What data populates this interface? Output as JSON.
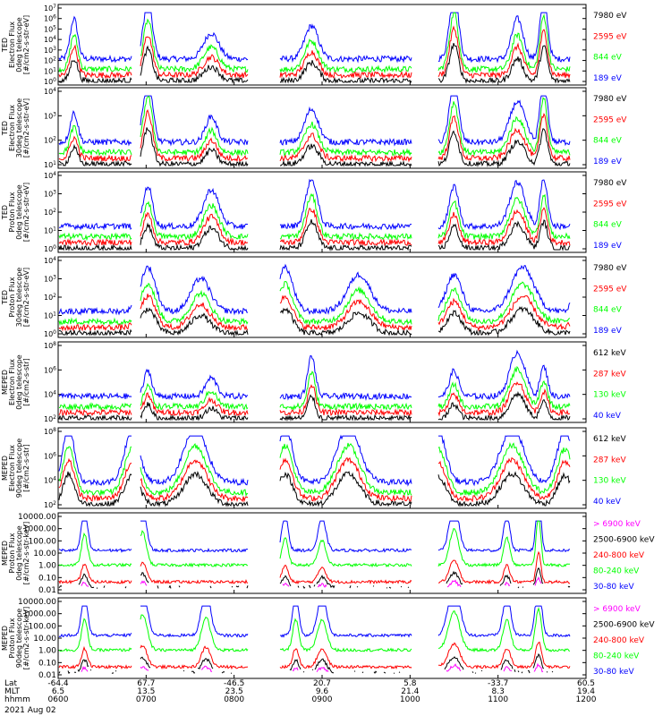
{
  "colors": {
    "blue": "#0000ff",
    "green": "#00ff00",
    "red": "#ff0000",
    "black": "#000000",
    "magenta": "#ff00ff"
  },
  "chart_data": [
    {
      "type": "line",
      "ylabel": [
        "TED",
        "Electron Flux",
        "0deg telescope",
        "[#/cm2-s-str-eV]"
      ],
      "scale": "log",
      "yticks": [
        "10^0",
        "10^1",
        "10^2",
        "10^3",
        "10^4",
        "10^5",
        "10^6",
        "10^7"
      ],
      "ylim": [
        1,
        10000000
      ],
      "series": [
        {
          "name": "7980 eV",
          "color": "#000000"
        },
        {
          "name": "2595 eV",
          "color": "#ff0000"
        },
        {
          "name": "844 eV",
          "color": "#00ff00"
        },
        {
          "name": "189 eV",
          "color": "#0000ff"
        }
      ]
    },
    {
      "type": "line",
      "ylabel": [
        "TED",
        "Electron Flux",
        "30deg telescope",
        "[#/cm2-s-str-eV]"
      ],
      "scale": "log",
      "yticks": [
        "10^1",
        "10^2",
        "10^3",
        "10^4"
      ],
      "ylim": [
        1,
        100000
      ],
      "series": [
        {
          "name": "7980 eV",
          "color": "#000000"
        },
        {
          "name": "2595 eV",
          "color": "#ff0000"
        },
        {
          "name": "844 eV",
          "color": "#00ff00"
        },
        {
          "name": "189 eV",
          "color": "#0000ff"
        }
      ]
    },
    {
      "type": "line",
      "ylabel": [
        "TED",
        "Proton Flux",
        "0deg telescope",
        "[#/cm2-s-str-eV]"
      ],
      "scale": "log",
      "yticks": [
        "10^0",
        "10^1",
        "10^2",
        "10^3",
        "10^4"
      ],
      "ylim": [
        0.3,
        100000
      ],
      "series": [
        {
          "name": "7980 eV",
          "color": "#000000"
        },
        {
          "name": "2595 eV",
          "color": "#ff0000"
        },
        {
          "name": "844 eV",
          "color": "#00ff00"
        },
        {
          "name": "189 eV",
          "color": "#0000ff"
        }
      ]
    },
    {
      "type": "line",
      "ylabel": [
        "TED",
        "Proton Flux",
        "30deg telescope",
        "[#/cm2-s-str-eV]"
      ],
      "scale": "log",
      "yticks": [
        "10^0",
        "10^1",
        "10^2",
        "10^3",
        "10^4"
      ],
      "ylim": [
        0.3,
        100000
      ],
      "series": [
        {
          "name": "7980 eV",
          "color": "#000000"
        },
        {
          "name": "2595 eV",
          "color": "#ff0000"
        },
        {
          "name": "844 eV",
          "color": "#00ff00"
        },
        {
          "name": "189 eV",
          "color": "#0000ff"
        }
      ]
    },
    {
      "type": "line",
      "ylabel": [
        "MEPED",
        "Electron Flux",
        "0deg telescope",
        "[#/cm2-s-str]"
      ],
      "scale": "log",
      "yticks": [
        "10^2",
        "10^4",
        "10^6",
        "10^8"
      ],
      "ylim": [
        10,
        100000000
      ],
      "series": [
        {
          "name": "612 keV",
          "color": "#000000"
        },
        {
          "name": "287 keV",
          "color": "#ff0000"
        },
        {
          "name": "130 keV",
          "color": "#00ff00"
        },
        {
          "name": "40 keV",
          "color": "#0000ff"
        }
      ]
    },
    {
      "type": "line",
      "ylabel": [
        "MEPED",
        "Electron Flux",
        "90deg telescope",
        "[#/cm2-s-str]"
      ],
      "scale": "log",
      "yticks": [
        "10^2",
        "10^4",
        "10^6",
        "10^8"
      ],
      "ylim": [
        10,
        100000000
      ],
      "series": [
        {
          "name": "612 keV",
          "color": "#000000"
        },
        {
          "name": "287 keV",
          "color": "#ff0000"
        },
        {
          "name": "130 keV",
          "color": "#00ff00"
        },
        {
          "name": "40 keV",
          "color": "#0000ff"
        }
      ]
    },
    {
      "type": "line",
      "ylabel": [
        "MEPED",
        "Proton Flux",
        "0deg telescope",
        "[#/cm2-s-str-keV]"
      ],
      "scale": "log",
      "yticks": [
        "10000.00",
        "1000.00",
        "100.00",
        "10.00",
        "1.00",
        "0.10",
        "0.01"
      ],
      "ylim": [
        0.005,
        20000
      ],
      "series": [
        {
          "name": "> 6900 keV",
          "color": "#ff00ff"
        },
        {
          "name": "2500-6900 keV",
          "color": "#000000"
        },
        {
          "name": "240-800 keV",
          "color": "#ff0000"
        },
        {
          "name": "80-240 keV",
          "color": "#00ff00"
        },
        {
          "name": "30-80 keV",
          "color": "#0000ff"
        }
      ]
    },
    {
      "type": "line",
      "ylabel": [
        "MEPED",
        "Proton Flux",
        "90deg telescope",
        "[#/cm2-s-str-keV]"
      ],
      "scale": "log",
      "yticks": [
        "10000.00",
        "1000.00",
        "100.00",
        "10.00",
        "1.00",
        "0.10",
        "0.01"
      ],
      "ylim": [
        0.005,
        20000
      ],
      "series": [
        {
          "name": "> 6900 keV",
          "color": "#ff00ff"
        },
        {
          "name": "2500-6900 keV",
          "color": "#000000"
        },
        {
          "name": "240-800 keV",
          "color": "#ff0000"
        },
        {
          "name": "80-240 keV",
          "color": "#00ff00"
        },
        {
          "name": "30-80 keV",
          "color": "#0000ff"
        }
      ]
    }
  ],
  "x_axis": {
    "row_labels": [
      "Lat",
      "MLT",
      "hhmm"
    ],
    "ticks": [
      {
        "lat": "-64.4",
        "mlt": "6.5",
        "hhmm": "0600"
      },
      {
        "lat": "67.7",
        "mlt": "13.5",
        "hhmm": "0700"
      },
      {
        "lat": "-46.5",
        "mlt": "23.5",
        "hhmm": "0800"
      },
      {
        "lat": "20.7",
        "mlt": "9.6",
        "hhmm": "0900"
      },
      {
        "lat": "5.8",
        "mlt": "21.4",
        "hhmm": "1000"
      },
      {
        "lat": "-33.7",
        "mlt": "8.3",
        "hhmm": "1100"
      },
      {
        "lat": "60.5",
        "mlt": "19.4",
        "hhmm": "1200"
      }
    ],
    "date": "2021 Aug 02"
  }
}
